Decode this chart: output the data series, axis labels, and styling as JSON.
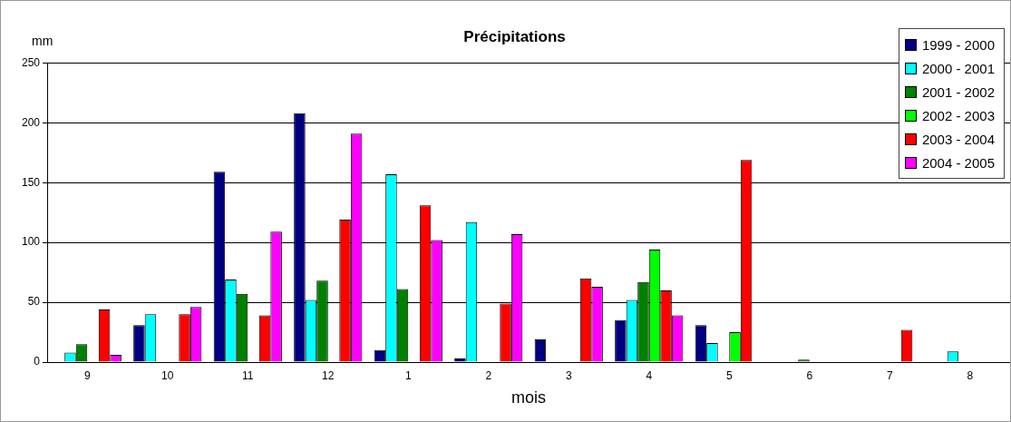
{
  "chart_data": {
    "type": "bar",
    "title": "Précipitations",
    "ylabel": "mm",
    "xlabel": "mois",
    "categories": [
      "9",
      "10",
      "11",
      "12",
      "1",
      "2",
      "3",
      "4",
      "5",
      "6",
      "7",
      "8"
    ],
    "series": [
      {
        "name": "1999 - 2000",
        "color": "#000080",
        "values": [
          null,
          31,
          159,
          208,
          10,
          3,
          19,
          35,
          31,
          null,
          null,
          null
        ]
      },
      {
        "name": "2000 - 2001",
        "color": "#00ffff",
        "values": [
          8,
          40,
          69,
          52,
          157,
          117,
          null,
          52,
          16,
          null,
          null,
          9
        ]
      },
      {
        "name": "2001 - 2002",
        "color": "#008000",
        "values": [
          15,
          null,
          57,
          68,
          61,
          null,
          null,
          67,
          null,
          2,
          null,
          null
        ]
      },
      {
        "name": "2002 - 2003",
        "color": "#00ff00",
        "values": [
          null,
          null,
          null,
          null,
          null,
          null,
          null,
          94,
          25,
          null,
          null,
          null
        ]
      },
      {
        "name": "2003 - 2004",
        "color": "#ff0000",
        "values": [
          44,
          40,
          39,
          119,
          131,
          49,
          70,
          60,
          169,
          null,
          27,
          null
        ]
      },
      {
        "name": "2004 - 2005",
        "color": "#ff00ff",
        "values": [
          6,
          46,
          109,
          191,
          102,
          107,
          63,
          39,
          null,
          null,
          null,
          null
        ]
      }
    ],
    "ylim": [
      0,
      250
    ],
    "yticks": [
      0,
      50,
      100,
      150,
      200,
      250
    ],
    "grid": "y",
    "legend": "top right"
  }
}
